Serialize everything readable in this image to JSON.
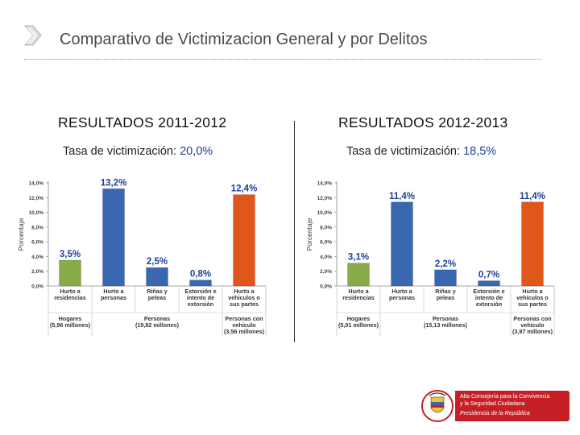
{
  "header": {
    "title": "Comparativo de Victimizacion General y por Delitos"
  },
  "sections": [
    {
      "heading": "RESULTADOS 2011-2012",
      "rate_label": "Tasa de victimización:",
      "rate_value": "20,0%"
    },
    {
      "heading": "RESULTADOS 2012-2013",
      "rate_label": "Tasa de victimización:",
      "rate_value": "18,5%"
    }
  ],
  "logo": {
    "line1": "Alta Consejería para la Convivencia",
    "line2": "y la Seguridad Ciudadana",
    "line3": "Presidencia de la República"
  },
  "colors": {
    "green": "#8aab4a",
    "blue": "#3a68b0",
    "orange": "#e0571c",
    "accent": "#1f3f99",
    "logo_red": "#c62026"
  },
  "chart_data": [
    {
      "type": "bar",
      "title": "",
      "ylabel": "Porcentaje",
      "ylim": [
        0,
        14
      ],
      "yticks": [
        "0,0%",
        "2,0%",
        "4,0%",
        "6,0%",
        "8,0%",
        "10,0%",
        "12,0%",
        "14,0%"
      ],
      "categories": [
        "Hurto a residencias",
        "Hurto a personas",
        "Riñas y peleas",
        "Extorsión e intento de extorsión",
        "Hurto a vehículos o sus partes"
      ],
      "values": [
        3.5,
        13.2,
        2.5,
        0.8,
        12.4
      ],
      "value_labels": [
        "3,5%",
        "13,2%",
        "2,5%",
        "0,8%",
        "12,4%"
      ],
      "bar_colors": [
        "#8aab4a",
        "#3a68b0",
        "#3a68b0",
        "#3a68b0",
        "#e0571c"
      ],
      "groups": [
        {
          "label": "Hogares",
          "sublabel": "(5,96 millones)"
        },
        {
          "label": "Personas",
          "sublabel": "(19,82 millones)"
        },
        {
          "label": "Personas con vehículo",
          "sublabel": "(3,56 millones)"
        }
      ]
    },
    {
      "type": "bar",
      "title": "",
      "ylabel": "Porcentaje",
      "ylim": [
        0,
        14
      ],
      "yticks": [
        "0,0%",
        "2,0%",
        "4,0%",
        "6,0%",
        "8,0%",
        "10,0%",
        "12,0%",
        "14,0%"
      ],
      "categories": [
        "Hurto a residencias",
        "Hurto a personas",
        "Riñas y peleas",
        "Extorsión e intento de extorsión",
        "Hurto a vehículos o sus partes"
      ],
      "values": [
        3.1,
        11.4,
        2.2,
        0.7,
        11.4
      ],
      "value_labels": [
        "3,1%",
        "11,4%",
        "2,2%",
        "0,7%",
        "11,4%"
      ],
      "bar_colors": [
        "#8aab4a",
        "#3a68b0",
        "#3a68b0",
        "#3a68b0",
        "#e0571c"
      ],
      "groups": [
        {
          "label": "Hogares",
          "sublabel": "(5,01 millones)"
        },
        {
          "label": "Personas",
          "sublabel": "(15,13 millones)"
        },
        {
          "label": "Personas con vehículo",
          "sublabel": "(3,97 millones)"
        }
      ]
    }
  ]
}
